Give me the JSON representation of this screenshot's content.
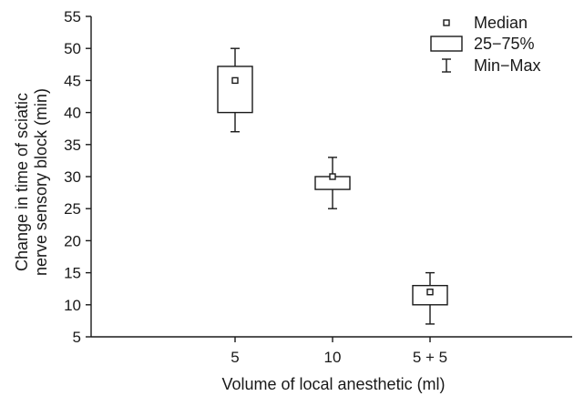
{
  "chart_data": {
    "type": "box",
    "categories": [
      "5",
      "10",
      "5 + 5"
    ],
    "boxes": [
      {
        "category": "5",
        "min": 37,
        "q1": 40,
        "median": 45,
        "q3": 47.2,
        "max": 50
      },
      {
        "category": "10",
        "min": 25,
        "q1": 28,
        "median": 30,
        "q3": 30,
        "max": 33
      },
      {
        "category": "5 + 5",
        "min": 7,
        "q1": 10,
        "median": 12,
        "q3": 13,
        "max": 15
      }
    ],
    "xlabel": "Volume of local anesthetic (ml)",
    "ylabel_line1": "Change in time of sciatic",
    "ylabel_line2": "nerve sensory block (min)",
    "ylim": [
      5,
      55
    ],
    "yticks": [
      5,
      10,
      15,
      20,
      25,
      30,
      35,
      40,
      45,
      50,
      55
    ],
    "grid": false,
    "legend": {
      "position": "top-right",
      "entries": [
        {
          "symbol": "median",
          "label": "Median"
        },
        {
          "symbol": "box",
          "label": "25−75%"
        },
        {
          "symbol": "whisker",
          "label": "Min−Max"
        }
      ]
    }
  }
}
